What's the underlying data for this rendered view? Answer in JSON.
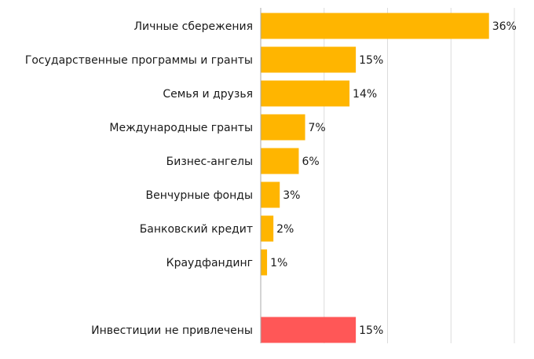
{
  "chart_data": {
    "type": "bar",
    "orientation": "horizontal",
    "categories": [
      "Личные сбережения",
      "Государственные программы и гранты",
      "Семья и друзья",
      "Международные гранты",
      "Бизнес-ангелы",
      "Венчурные фонды",
      "Банковский кредит",
      "Краудфандинг",
      "Инвестиции не привлечены"
    ],
    "values": [
      36,
      15,
      14,
      7,
      6,
      3,
      2,
      1,
      15
    ],
    "data_labels": [
      "36%",
      "15%",
      "14%",
      "7%",
      "6%",
      "3%",
      "2%",
      "1%",
      "15%"
    ],
    "bar_colors": [
      "#FFB500",
      "#FFB500",
      "#FFB500",
      "#FFB500",
      "#FFB500",
      "#FFB500",
      "#FFB500",
      "#FFB500",
      "#FF5757"
    ],
    "title": "",
    "xlabel": "",
    "ylabel": "",
    "xlim": [
      0,
      40
    ],
    "grid": true,
    "gridline_values": [
      10,
      20,
      30,
      40
    ]
  }
}
